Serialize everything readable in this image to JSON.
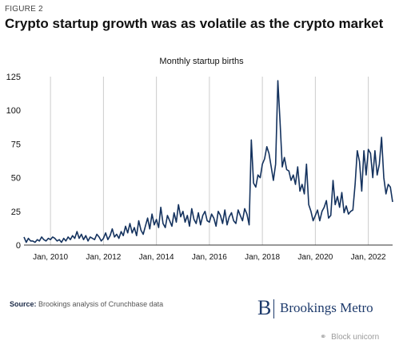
{
  "figure": {
    "label": "FIGURE 2",
    "title": "Crypto startup growth was as volatile as the crypto market"
  },
  "source": {
    "prefix": "Source:",
    "text": "Brookings analysis of Crunchbase data"
  },
  "brand": {
    "mark": "B",
    "name": "Brookings Metro"
  },
  "watermark": {
    "text": "Block unicorn"
  },
  "colors": {
    "line": "#14325e",
    "grid": "#cccccc",
    "text": "#111111",
    "brand": "#1d3a6b"
  },
  "chart_data": {
    "type": "line",
    "title": "Monthly startup births",
    "xlabel": "",
    "ylabel": "",
    "ylim": [
      0,
      125
    ],
    "y_ticks": [
      0,
      25,
      50,
      75,
      100,
      125
    ],
    "grid": "vertical",
    "x_start": "2009-01",
    "x_end": "2022-12",
    "x_ticks": [
      {
        "label": "Jan, 2010",
        "date": "2010-01"
      },
      {
        "label": "Jan, 2012",
        "date": "2012-01"
      },
      {
        "label": "Jan, 2014",
        "date": "2014-01"
      },
      {
        "label": "Jan, 2016",
        "date": "2016-01"
      },
      {
        "label": "Jan, 2018",
        "date": "2018-01"
      },
      {
        "label": "Jan, 2020",
        "date": "2020-01"
      },
      {
        "label": "Jan, 2022",
        "date": "2022-01"
      }
    ],
    "series": [
      {
        "name": "",
        "start": "2009-01",
        "frequency": "monthly",
        "values": [
          6,
          2,
          5,
          3,
          3,
          2,
          4,
          3,
          6,
          4,
          3,
          5,
          4,
          6,
          5,
          3,
          4,
          2,
          5,
          3,
          6,
          4,
          7,
          5,
          10,
          5,
          8,
          4,
          7,
          3,
          6,
          5,
          4,
          8,
          6,
          3,
          5,
          9,
          4,
          7,
          12,
          6,
          8,
          5,
          10,
          7,
          14,
          9,
          16,
          9,
          13,
          7,
          18,
          11,
          8,
          14,
          20,
          12,
          23,
          15,
          19,
          13,
          28,
          16,
          13,
          22,
          18,
          14,
          24,
          17,
          30,
          21,
          25,
          17,
          22,
          14,
          27,
          19,
          16,
          24,
          15,
          22,
          25,
          18,
          17,
          23,
          20,
          14,
          25,
          22,
          16,
          26,
          15,
          21,
          24,
          18,
          16,
          26,
          22,
          18,
          27,
          23,
          15,
          78,
          46,
          43,
          52,
          50,
          60,
          64,
          73,
          68,
          58,
          48,
          60,
          122,
          92,
          58,
          65,
          56,
          55,
          48,
          52,
          45,
          58,
          40,
          45,
          38,
          60,
          30,
          25,
          18,
          22,
          26,
          18,
          25,
          28,
          33,
          20,
          22,
          48,
          30,
          36,
          28,
          39,
          24,
          29,
          23,
          25,
          26,
          45,
          70,
          62,
          40,
          70,
          52,
          71,
          68,
          50,
          70,
          52,
          60,
          80,
          50,
          38,
          45,
          43,
          32
        ]
      }
    ]
  }
}
